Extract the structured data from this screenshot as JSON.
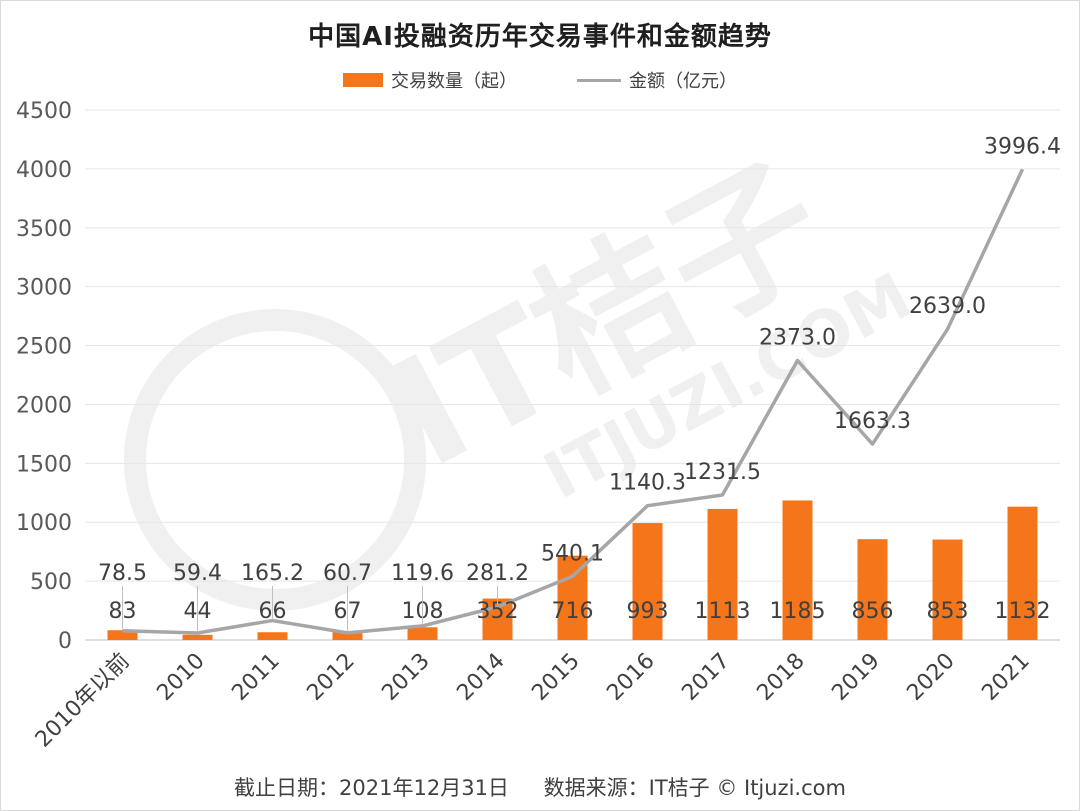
{
  "chart_data": {
    "type": "bar",
    "title": "中国AI投融资历年交易事件和金额趋势",
    "categories": [
      "2010年以前",
      "2010",
      "2011",
      "2012",
      "2013",
      "2014",
      "2015",
      "2016",
      "2017",
      "2018",
      "2019",
      "2020",
      "2021"
    ],
    "series": [
      {
        "name": "交易数量（起）",
        "type": "bar",
        "color": "#f5761a",
        "values": [
          83,
          44,
          66,
          67,
          108,
          352,
          716,
          993,
          1113,
          1185,
          856,
          853,
          1132
        ],
        "labels": [
          "83",
          "44",
          "66",
          "67",
          "108",
          "352",
          "716",
          "993",
          "1113",
          "1185",
          "856",
          "853",
          "1132"
        ]
      },
      {
        "name": "金额（亿元）",
        "type": "line",
        "color": "#a6a6a6",
        "values": [
          78.5,
          59.4,
          165.2,
          60.7,
          119.6,
          281.2,
          540.1,
          1140.3,
          1231.5,
          2373.0,
          1663.3,
          2639.0,
          3996.4
        ],
        "labels": [
          "78.5",
          "59.4",
          "165.2",
          "60.7",
          "119.6",
          "281.2",
          "540.1",
          "1140.3",
          "1231.5",
          "2373.0",
          "1663.3",
          "2639.0",
          "3996.4"
        ]
      }
    ],
    "ylim": [
      0,
      4500
    ],
    "yticks": [
      "0",
      "500",
      "1000",
      "1500",
      "2000",
      "2500",
      "3000",
      "3500",
      "4000",
      "4500"
    ],
    "grid": true,
    "legend": "top-center"
  },
  "footer": {
    "date": "截止日期：2021年12月31日",
    "source": "数据来源：IT桔子 © Itjuzi.com"
  },
  "watermark": {
    "brand": "IT桔子",
    "domain": "ITJUZI.COM"
  }
}
